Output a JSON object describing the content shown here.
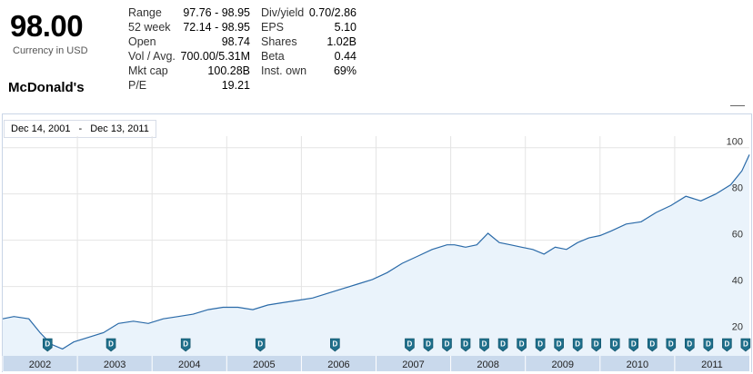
{
  "quote": {
    "price": "98.00",
    "currency": "Currency in USD",
    "company": "McDonald's"
  },
  "stats_left": [
    {
      "label": "Range",
      "value": "97.76 - 98.95"
    },
    {
      "label": "52 week",
      "value": "72.14 - 98.95"
    },
    {
      "label": "Open",
      "value": "98.74"
    },
    {
      "label": "Vol / Avg.",
      "value": "700.00/5.31M"
    },
    {
      "label": "Mkt cap",
      "value": "100.28B"
    },
    {
      "label": "P/E",
      "value": "19.21"
    }
  ],
  "stats_right": [
    {
      "label": "Div/yield",
      "value": "0.70/2.86"
    },
    {
      "label": "EPS",
      "value": "5.10"
    },
    {
      "label": "Shares",
      "value": "1.02B"
    },
    {
      "label": "Beta",
      "value": "0.44"
    },
    {
      "label": "Inst. own",
      "value": "69%"
    }
  ],
  "date_range": {
    "from": "Dec 14, 2001",
    "separator": "-",
    "to": "Dec 13, 2011"
  },
  "colors": {
    "line": "#2a6aa8",
    "fill": "#eaf3fb",
    "grid": "#e4e4e4",
    "axis_bar": "#c9d9ec",
    "marker": "#1f6f8b"
  },
  "chart_data": {
    "type": "area",
    "xlabel": "",
    "ylabel": "",
    "x_ticks": [
      "2002",
      "2003",
      "2004",
      "2005",
      "2006",
      "2007",
      "2008",
      "2009",
      "2010",
      "2011"
    ],
    "y_ticks": [
      20,
      40,
      60,
      80,
      100
    ],
    "ylim": [
      10,
      105
    ],
    "xlim": [
      2001.95,
      2011.95
    ],
    "grid": true,
    "series": [
      {
        "name": "",
        "x": [
          2001.95,
          2002.1,
          2002.3,
          2002.45,
          2002.6,
          2002.75,
          2002.9,
          2003.1,
          2003.3,
          2003.5,
          2003.7,
          2003.9,
          2004.1,
          2004.3,
          2004.5,
          2004.7,
          2004.9,
          2005.1,
          2005.3,
          2005.5,
          2005.7,
          2005.9,
          2006.1,
          2006.3,
          2006.5,
          2006.7,
          2006.9,
          2007.1,
          2007.3,
          2007.5,
          2007.7,
          2007.9,
          2008.0,
          2008.15,
          2008.3,
          2008.45,
          2008.6,
          2008.75,
          2008.9,
          2009.05,
          2009.2,
          2009.35,
          2009.5,
          2009.65,
          2009.8,
          2009.95,
          2010.1,
          2010.3,
          2010.5,
          2010.7,
          2010.9,
          2011.1,
          2011.3,
          2011.5,
          2011.7,
          2011.85,
          2011.95
        ],
        "values": [
          26,
          27,
          26,
          20,
          15,
          13,
          16,
          18,
          20,
          24,
          25,
          24,
          26,
          27,
          28,
          30,
          31,
          31,
          30,
          32,
          33,
          34,
          35,
          37,
          39,
          41,
          43,
          46,
          50,
          53,
          56,
          58,
          58,
          57,
          58,
          63,
          59,
          58,
          57,
          56,
          54,
          57,
          56,
          59,
          61,
          62,
          64,
          67,
          68,
          72,
          75,
          79,
          77,
          80,
          84,
          90,
          97
        ]
      }
    ],
    "dividend_markers_x": [
      2002.55,
      2003.4,
      2004.4,
      2005.4,
      2006.4,
      2007.4,
      2007.65,
      2007.9,
      2008.15,
      2008.4,
      2008.65,
      2008.9,
      2009.15,
      2009.4,
      2009.65,
      2009.9,
      2010.15,
      2010.4,
      2010.65,
      2010.9,
      2011.15,
      2011.4,
      2011.65,
      2011.9
    ]
  }
}
